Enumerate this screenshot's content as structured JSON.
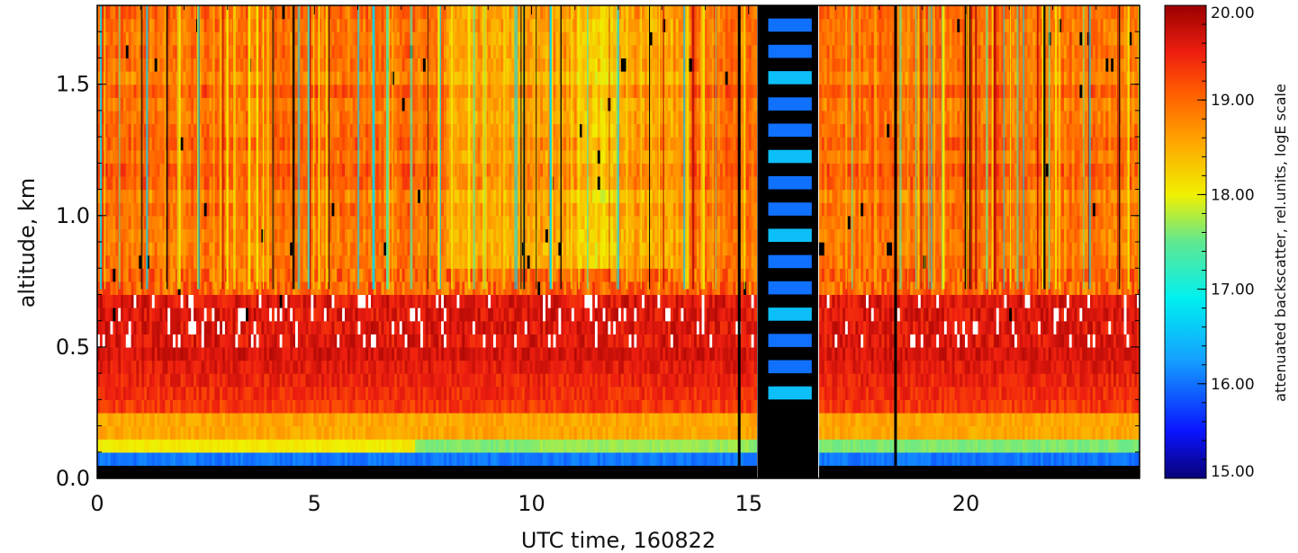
{
  "chart_data": {
    "type": "heatmap",
    "xlabel": "UTC time, 160822",
    "ylabel": "altitude, km",
    "xlim": [
      0,
      24
    ],
    "ylim": [
      0,
      1.8
    ],
    "x_ticks": [
      "0",
      "5",
      "10",
      "15",
      "20"
    ],
    "y_ticks": [
      "0.0",
      "0.5",
      "1.0",
      "1.5"
    ],
    "colorbar": {
      "label": "attenuated backscatter, rel.units, logE scale",
      "range": [
        15.0,
        20.0
      ],
      "ticks": [
        "15.00",
        "16.00",
        "17.00",
        "18.00",
        "19.00",
        "20.00"
      ],
      "colormap": "rainbow (dark blue → blue → cyan → green → yellow → orange → red → dark red)"
    },
    "altitude_layers_km": [
      {
        "from": 0.0,
        "to": 0.05,
        "value": "no data (black)"
      },
      {
        "from": 0.05,
        "to": 0.11,
        "value": 16.0
      },
      {
        "from": 0.11,
        "to": 0.16,
        "value_before_7.3h": 18.0,
        "value_after_7.3h": 17.6
      },
      {
        "from": 0.16,
        "to": 0.5,
        "value": 19.4
      },
      {
        "from": 0.5,
        "to": 0.7,
        "value": 19.7
      },
      {
        "from": 0.7,
        "to": 1.8,
        "value": 18.9
      }
    ],
    "data_gap_hours": [
      15.2,
      16.6
    ],
    "gap_pattern_values": [
      16.0,
      16.5
    ]
  }
}
